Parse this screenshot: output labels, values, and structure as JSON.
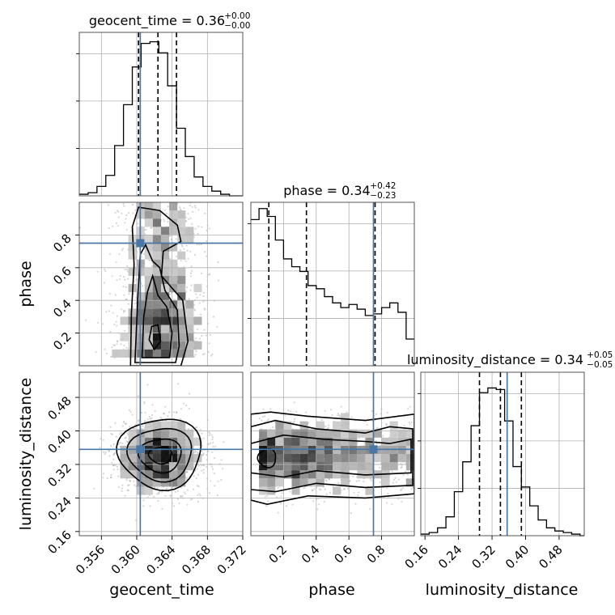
{
  "chart_data": {
    "type": "corner",
    "parameters": [
      "geocent_time",
      "phase",
      "luminosity_distance"
    ],
    "truth": {
      "geocent_time": 0.3604,
      "phase": 0.75,
      "luminosity_distance": 0.356
    },
    "colors": {
      "truth": "#4a78a6",
      "hist": "#000000",
      "grid": "#b0b0b0"
    },
    "ranges": {
      "geocent_time": [
        0.3535,
        0.372
      ],
      "phase": [
        0.0,
        1.0
      ],
      "luminosity_distance": [
        0.15,
        0.54
      ]
    },
    "ticks": {
      "geocent_time": [
        "0.356",
        "0.360",
        "0.364",
        "0.368",
        "0.372"
      ],
      "phase": [
        "0.2",
        "0.4",
        "0.6",
        "0.8"
      ],
      "luminosity_distance": [
        "0.16",
        "0.24",
        "0.32",
        "0.40",
        "0.48"
      ]
    },
    "axis_labels": {
      "geocent_time": "geocent_time",
      "phase": "phase",
      "luminosity_distance": "luminosity_distance"
    },
    "titles": [
      {
        "param": "geocent_time",
        "text": "geocent_time = 0.36",
        "plus": "+0.00",
        "minus": "−0.00"
      },
      {
        "param": "phase",
        "text": "phase = 0.34",
        "plus": "+0.42",
        "minus": "−0.23"
      },
      {
        "param": "luminosity_distance",
        "text": "luminosity_distance = 0.34",
        "plus": "+0.05",
        "minus": "−0.05"
      }
    ],
    "quantiles": {
      "geocent_time": [
        0.3602,
        0.3624,
        0.3645
      ],
      "phase": [
        0.11,
        0.34,
        0.76
      ],
      "luminosity_distance": [
        0.29,
        0.34,
        0.39
      ]
    },
    "histograms": {
      "geocent_time": {
        "edges": [
          0.3535,
          0.3545,
          0.3555,
          0.3565,
          0.3575,
          0.3585,
          0.3595,
          0.3605,
          0.3615,
          0.3625,
          0.3635,
          0.3645,
          0.3655,
          0.3665,
          0.3675,
          0.3685,
          0.3695,
          0.3705,
          0.372
        ],
        "counts": [
          0.01,
          0.02,
          0.06,
          0.13,
          0.32,
          0.58,
          0.82,
          0.97,
          0.98,
          0.91,
          0.7,
          0.43,
          0.25,
          0.12,
          0.06,
          0.03,
          0.01,
          0.0
        ]
      },
      "phase": {
        "edges": [
          0.0,
          0.05,
          0.1,
          0.15,
          0.2,
          0.25,
          0.3,
          0.35,
          0.4,
          0.45,
          0.5,
          0.55,
          0.6,
          0.65,
          0.7,
          0.75,
          0.8,
          0.85,
          0.9,
          0.95,
          1.0
        ],
        "counts": [
          0.93,
          1.0,
          0.95,
          0.8,
          0.68,
          0.63,
          0.6,
          0.51,
          0.49,
          0.44,
          0.4,
          0.37,
          0.39,
          0.36,
          0.32,
          0.33,
          0.37,
          0.4,
          0.34,
          0.17
        ]
      },
      "luminosity_distance": {
        "edges": [
          0.15,
          0.17,
          0.19,
          0.21,
          0.23,
          0.25,
          0.27,
          0.29,
          0.31,
          0.33,
          0.35,
          0.37,
          0.39,
          0.41,
          0.43,
          0.45,
          0.47,
          0.49,
          0.51,
          0.53,
          0.54
        ],
        "counts": [
          0.01,
          0.02,
          0.05,
          0.12,
          0.28,
          0.47,
          0.7,
          0.91,
          0.94,
          0.93,
          0.73,
          0.44,
          0.31,
          0.19,
          0.1,
          0.05,
          0.03,
          0.02,
          0.01,
          0.0
        ]
      }
    }
  }
}
